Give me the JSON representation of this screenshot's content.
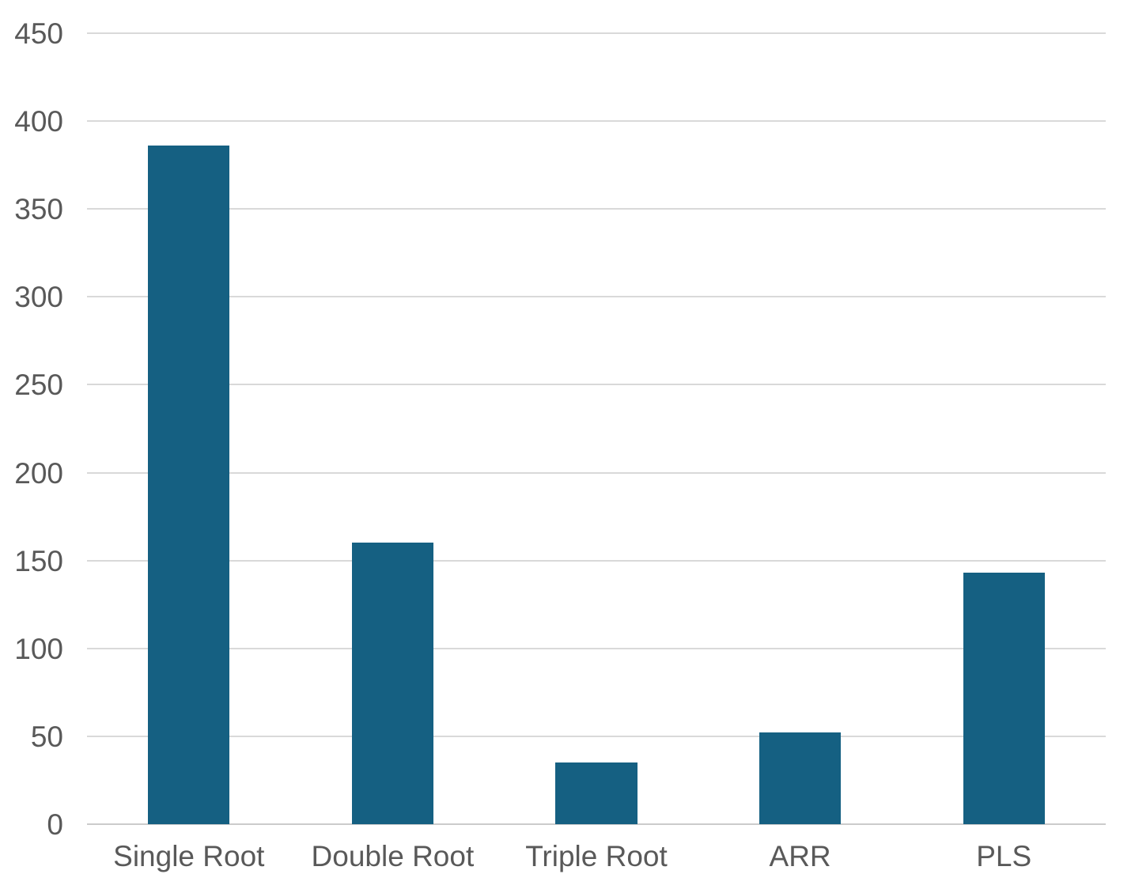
{
  "chart_data": {
    "type": "bar",
    "title": "",
    "xlabel": "",
    "ylabel": "",
    "categories": [
      "Single Root",
      "Double Root",
      "Triple Root",
      "ARR",
      "PLS"
    ],
    "values": [
      386,
      160,
      35,
      52,
      143
    ],
    "ylim": [
      0,
      450
    ],
    "yticks": [
      0,
      50,
      100,
      150,
      200,
      250,
      300,
      350,
      400,
      450
    ],
    "grid": true,
    "legend": false,
    "bar_width_fraction": 0.4,
    "colors": {
      "bar": "#156082",
      "gridline": "#d9d9d9",
      "axis_line": "#cbcbcb",
      "tick_text": "#595959",
      "background": "#ffffff"
    }
  }
}
